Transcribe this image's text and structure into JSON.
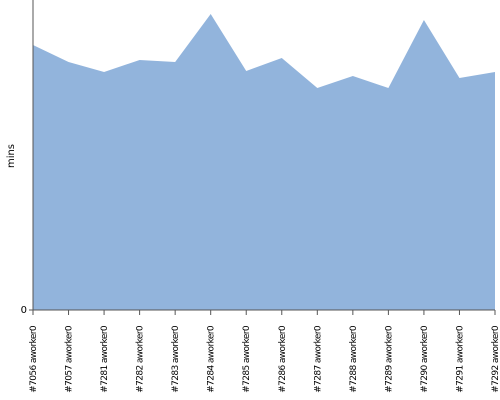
{
  "chart_data": {
    "type": "area",
    "y_label": "mins",
    "categories": [
      "#7056 aworker0",
      "#7057 aworker0",
      "#7281 aworker0",
      "#7282 aworker0",
      "#7283 aworker0",
      "#7284 aworker0",
      "#7285 aworker0",
      "#7286 aworker0",
      "#7287 aworker0",
      "#7288 aworker0",
      "#7289 aworker0",
      "#7290 aworker0",
      "#7291 aworker0",
      "#7292 aworker0"
    ],
    "values": [
      26.5,
      24.8,
      23.8,
      25,
      24.8,
      29.6,
      23.9,
      25.2,
      22.2,
      23.4,
      22.2,
      29,
      23.2,
      23.8
    ],
    "color": "#92b4dc",
    "ylim": [
      0,
      31
    ],
    "yticks": [
      0
    ]
  }
}
